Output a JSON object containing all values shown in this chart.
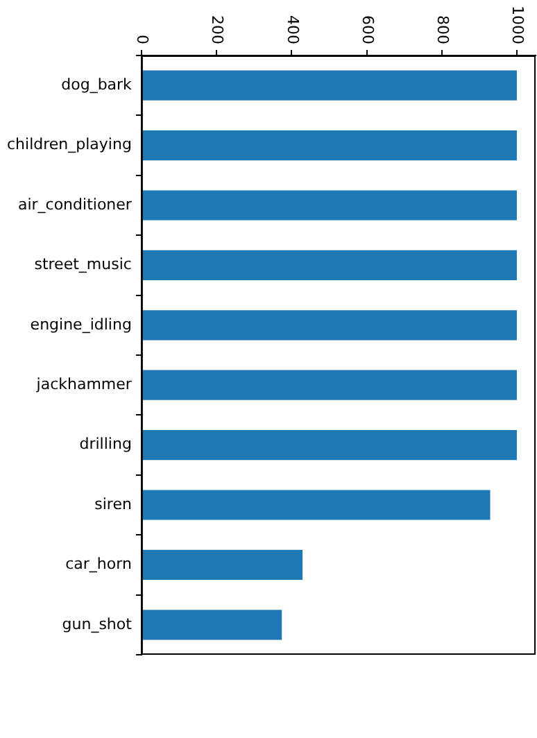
{
  "chart_data": {
    "type": "bar",
    "orientation": "horizontal",
    "categories": [
      "dog_bark",
      "children_playing",
      "air_conditioner",
      "street_music",
      "engine_idling",
      "jackhammer",
      "drilling",
      "siren",
      "car_horn",
      "gun_shot"
    ],
    "values": [
      1000,
      1000,
      1000,
      1000,
      1000,
      1000,
      1000,
      929,
      429,
      374
    ],
    "color": "#1f77b4",
    "xlim": [
      0,
      1050
    ],
    "xticks": [
      0,
      200,
      400,
      600,
      800,
      1000
    ],
    "grid": false,
    "legend": false
  }
}
